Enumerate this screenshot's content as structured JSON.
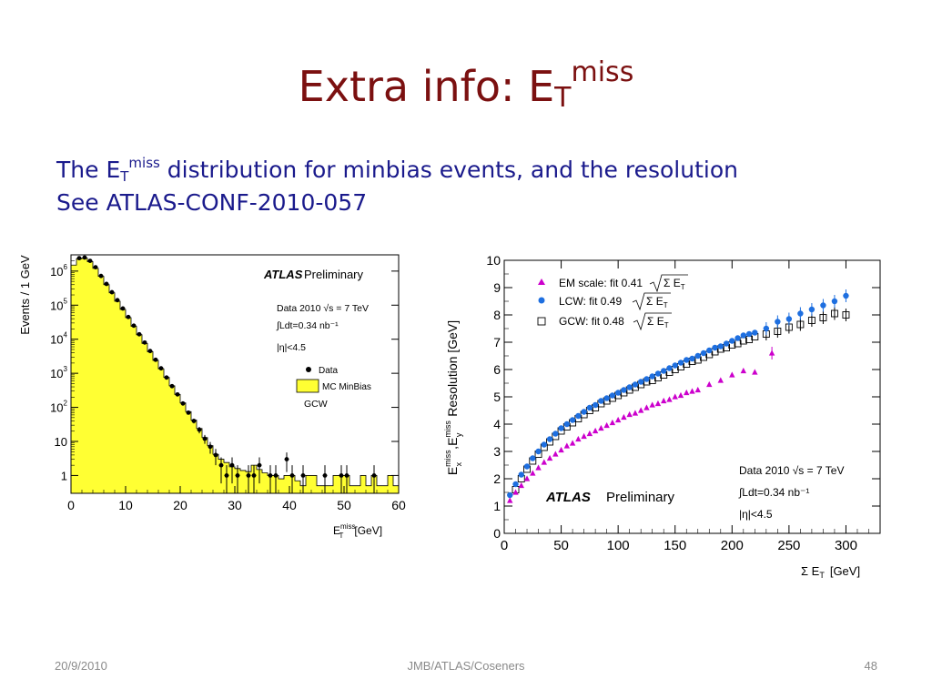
{
  "slide": {
    "title_main": "Extra info: E",
    "title_sub": "T",
    "title_sup": "miss",
    "line1_pre": "The E",
    "line1_sub": "T",
    "line1_sup": "miss",
    "line1_post": " distribution for minbias events, and the resolution",
    "line2": "See ATLAS-CONF-2010-057",
    "footer_date": "20/9/2010",
    "footer_center": "JMB/ATLAS/Coseners",
    "footer_page": "48"
  },
  "colors": {
    "title": "#7b1010",
    "text": "#1a1a8c",
    "mc_fill": "#ffff33",
    "em": "#cc00cc",
    "lcw": "#1e6fe0",
    "gcw": "#000000"
  },
  "chart_data": [
    {
      "type": "bar",
      "ylabel": "Events / 1 GeV",
      "xlabel_main": "E",
      "xlabel_sup": "miss",
      "xlabel_sub": "T",
      "xlabel_unit": "[GeV]",
      "xlim": [
        0,
        60
      ],
      "ylim": [
        0.3,
        3000000
      ],
      "log_y": true,
      "x_ticks": [
        "0",
        "10",
        "20",
        "30",
        "40",
        "50",
        "60"
      ],
      "y_ticks": [
        {
          "base": "1",
          "exp": ""
        },
        {
          "base": "10",
          "exp": ""
        },
        {
          "base": "10",
          "exp": "2"
        },
        {
          "base": "10",
          "exp": "3"
        },
        {
          "base": "10",
          "exp": "4"
        },
        {
          "base": "10",
          "exp": "5"
        },
        {
          "base": "10",
          "exp": "6"
        }
      ],
      "atlas_label": "ATLAS",
      "prelim_label": "Preliminary",
      "info_lines": [
        "Data 2010  √s = 7 TeV",
        "∫Ldt=0.34 nb⁻¹",
        "|η|<4.5"
      ],
      "legend": [
        "Data",
        "MC MinBias"
      ],
      "calib_label": "GCW",
      "series": [
        {
          "name": "Data",
          "x": [
            1.5,
            2.5,
            3.5,
            4.5,
            5.5,
            6.5,
            7.5,
            8.5,
            9.5,
            10.5,
            11.5,
            12.5,
            13.5,
            14.5,
            15.5,
            16.5,
            17.5,
            18.5,
            19.5,
            20.5,
            21.5,
            22.5,
            23.5,
            24.5,
            25.5,
            26.5,
            27.5,
            28.5,
            29.5,
            30.5,
            32.5,
            33.5,
            34.5,
            36.5,
            37.5,
            39.5,
            40.5,
            42.5,
            46.5,
            49.5,
            50.5,
            55.5
          ],
          "y": [
            2400000,
            2500000,
            2000000,
            1300000,
            720000,
            420000,
            240000,
            140000,
            80000,
            45000,
            25000,
            14000,
            8000,
            4500,
            2500,
            1400,
            750,
            420,
            240,
            130,
            70,
            40,
            22,
            12,
            7,
            4,
            2,
            1,
            2,
            1,
            1,
            1,
            2,
            1,
            1,
            3,
            1,
            1,
            1,
            1,
            1,
            1
          ]
        },
        {
          "name": "MC MinBias",
          "x": [
            0.5,
            1.5,
            2.5,
            3.5,
            4.5,
            5.5,
            6.5,
            7.5,
            8.5,
            9.5,
            10.5,
            11.5,
            12.5,
            13.5,
            14.5,
            15.5,
            16.5,
            17.5,
            18.5,
            19.5,
            20.5,
            21.5,
            22.5,
            23.5,
            24.5,
            25.5,
            26.5,
            27.5,
            28.5,
            29.5,
            30.5,
            31.5,
            32.5,
            33.5,
            34.5,
            35.5,
            36.5,
            37.5,
            38.5,
            39.5,
            40.5,
            41.5,
            42.5,
            43.5,
            44.5,
            45.5,
            46.5,
            47.5,
            48.5,
            49.5,
            50.5,
            51.5,
            52.5,
            53.5,
            54.5,
            55.5,
            56.5,
            57.5,
            58.5,
            59.5
          ],
          "y": [
            1500000,
            2300000,
            2400000,
            1900000,
            1200000,
            700000,
            400000,
            230000,
            130000,
            75000,
            43000,
            24000,
            13500,
            7500,
            4300,
            2400,
            1350,
            760,
            430,
            240,
            135,
            75,
            42,
            24,
            13,
            7.5,
            4.2,
            3,
            2.4,
            1.8,
            1.6,
            1.4,
            1.3,
            2,
            1.5,
            1.2,
            1,
            1,
            0.8,
            1,
            1,
            0.7,
            0.5,
            1,
            1,
            0.5,
            0.5,
            0.5,
            1,
            1,
            1,
            0.5,
            0.5,
            1,
            0.5,
            1,
            0.5,
            0.5,
            1,
            0.5
          ]
        }
      ]
    },
    {
      "type": "scatter",
      "ylabel_parts": {
        "e1": "E",
        "sup1": "miss",
        "sub1": "x",
        "sep": ",E",
        "sup2": "miss",
        "sub2": "y",
        "rest": " Resolution [GeV]"
      },
      "xlabel": "Σ E",
      "xlabel_sub": "T",
      "xlabel_unit": "[GeV]",
      "xlim": [
        0,
        330
      ],
      "ylim": [
        0,
        10
      ],
      "x_ticks": [
        "0",
        "50",
        "100",
        "150",
        "200",
        "250",
        "300"
      ],
      "y_ticks": [
        "0",
        "1",
        "2",
        "3",
        "4",
        "5",
        "6",
        "7",
        "8",
        "9",
        "10"
      ],
      "atlas_label": "ATLAS",
      "prelim_label": "Preliminary",
      "info_lines": [
        "Data 2010  √s = 7 TeV",
        "∫Ldt=0.34 nb⁻¹",
        "|η|<4.5"
      ],
      "series": [
        {
          "name": "EM scale: fit 0.41",
          "legend_sqrt": "Σ E",
          "legend_sub": "T",
          "x": [
            5,
            10,
            15,
            20,
            25,
            30,
            35,
            40,
            45,
            50,
            55,
            60,
            65,
            70,
            75,
            80,
            85,
            90,
            95,
            100,
            105,
            110,
            115,
            120,
            125,
            130,
            135,
            140,
            145,
            150,
            155,
            160,
            165,
            170,
            180,
            190,
            200,
            210,
            220,
            235
          ],
          "y": [
            1.2,
            1.5,
            1.75,
            2.0,
            2.2,
            2.4,
            2.6,
            2.75,
            2.9,
            3.05,
            3.2,
            3.3,
            3.45,
            3.55,
            3.65,
            3.75,
            3.85,
            3.95,
            4.05,
            4.15,
            4.25,
            4.35,
            4.4,
            4.5,
            4.6,
            4.7,
            4.75,
            4.85,
            4.9,
            5.0,
            5.05,
            5.15,
            5.2,
            5.25,
            5.45,
            5.6,
            5.8,
            5.95,
            5.9,
            6.6
          ]
        },
        {
          "name": "LCW: fit 0.49",
          "legend_sqrt": "Σ E",
          "legend_sub": "T",
          "x": [
            5,
            10,
            15,
            20,
            25,
            30,
            35,
            40,
            45,
            50,
            55,
            60,
            65,
            70,
            75,
            80,
            85,
            90,
            95,
            100,
            105,
            110,
            115,
            120,
            125,
            130,
            135,
            140,
            145,
            150,
            155,
            160,
            165,
            170,
            175,
            180,
            185,
            190,
            195,
            200,
            205,
            210,
            215,
            220,
            230,
            240,
            250,
            260,
            270,
            280,
            290,
            300
          ],
          "y": [
            1.4,
            1.8,
            2.15,
            2.45,
            2.75,
            3.0,
            3.25,
            3.45,
            3.65,
            3.85,
            4.0,
            4.15,
            4.3,
            4.45,
            4.6,
            4.7,
            4.85,
            4.95,
            5.05,
            5.15,
            5.25,
            5.35,
            5.45,
            5.55,
            5.65,
            5.75,
            5.85,
            5.95,
            6.05,
            6.15,
            6.25,
            6.35,
            6.4,
            6.5,
            6.6,
            6.7,
            6.8,
            6.85,
            6.95,
            7.05,
            7.15,
            7.25,
            7.3,
            7.35,
            7.5,
            7.75,
            7.85,
            8.05,
            8.2,
            8.35,
            8.5,
            8.7
          ]
        },
        {
          "name": "GCW: fit 0.48",
          "legend_sqrt": "Σ E",
          "legend_sub": "T",
          "x": [
            10,
            15,
            20,
            25,
            30,
            35,
            40,
            45,
            50,
            55,
            60,
            65,
            70,
            75,
            80,
            85,
            90,
            95,
            100,
            105,
            110,
            115,
            120,
            125,
            130,
            135,
            140,
            145,
            150,
            155,
            160,
            165,
            170,
            175,
            180,
            185,
            190,
            195,
            200,
            205,
            210,
            215,
            220,
            230,
            240,
            250,
            260,
            270,
            280,
            290,
            300
          ],
          "y": [
            1.6,
            2.0,
            2.35,
            2.65,
            2.9,
            3.15,
            3.35,
            3.55,
            3.75,
            3.9,
            4.05,
            4.2,
            4.35,
            4.5,
            4.6,
            4.75,
            4.85,
            4.95,
            5.05,
            5.15,
            5.25,
            5.35,
            5.45,
            5.55,
            5.6,
            5.7,
            5.8,
            5.9,
            6.0,
            6.1,
            6.2,
            6.3,
            6.35,
            6.45,
            6.55,
            6.65,
            6.75,
            6.8,
            6.9,
            6.95,
            7.05,
            7.1,
            7.2,
            7.3,
            7.4,
            7.55,
            7.65,
            7.8,
            7.9,
            8.05,
            8.0
          ]
        }
      ]
    }
  ]
}
